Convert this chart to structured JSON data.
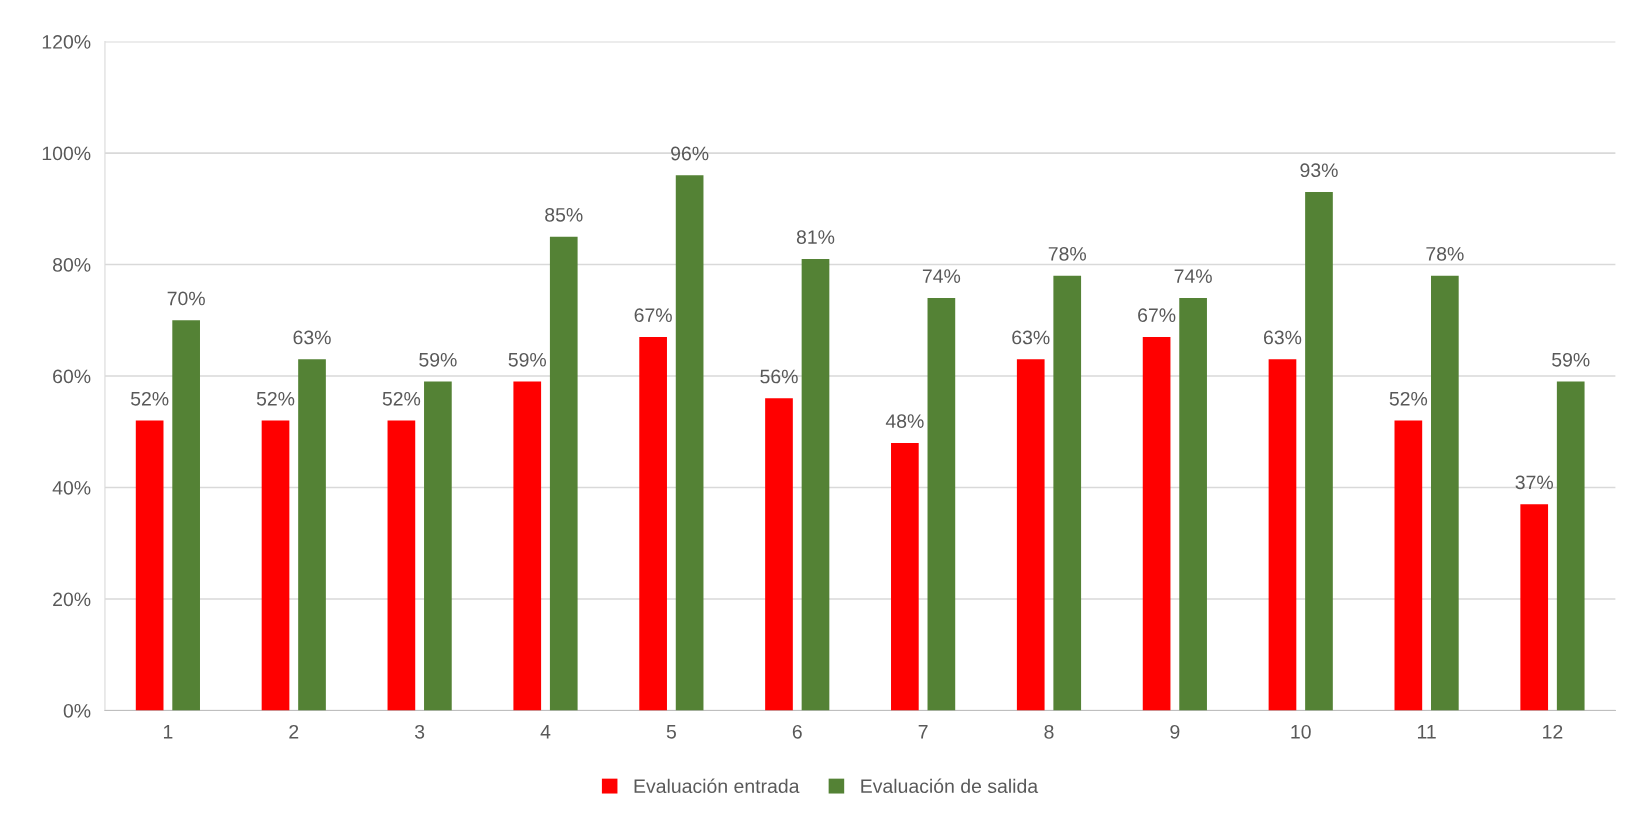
{
  "chart_data": {
    "type": "bar",
    "categories": [
      "1",
      "2",
      "3",
      "4",
      "5",
      "6",
      "7",
      "8",
      "9",
      "10",
      "11",
      "12"
    ],
    "series": [
      {
        "name": "Evaluación entrada",
        "color": "#ff0000",
        "values": [
          52,
          52,
          52,
          59,
          67,
          56,
          48,
          63,
          67,
          63,
          52,
          37
        ],
        "value_labels": [
          "52%",
          "52%",
          "52%",
          "59%",
          "67%",
          "56%",
          "48%",
          "63%",
          "67%",
          "63%",
          "52%",
          "37%"
        ]
      },
      {
        "name": "Evaluación de salida",
        "color": "#548235",
        "values": [
          70,
          63,
          59,
          85,
          96,
          81,
          74,
          78,
          74,
          93,
          78,
          59
        ],
        "value_labels": [
          "70%",
          "63%",
          "59%",
          "85%",
          "96%",
          "81%",
          "74%",
          "78%",
          "74%",
          "93%",
          "78%",
          "59%"
        ]
      }
    ],
    "ylim": [
      0,
      120
    ],
    "yticks": [
      {
        "value": 0,
        "label": "0%"
      },
      {
        "value": 20,
        "label": "20%"
      },
      {
        "value": 40,
        "label": "40%"
      },
      {
        "value": 60,
        "label": "60%"
      },
      {
        "value": 80,
        "label": "80%"
      },
      {
        "value": 100,
        "label": "100%"
      },
      {
        "value": 120,
        "label": "120%"
      }
    ],
    "grid": "y",
    "legend": "bottom"
  }
}
